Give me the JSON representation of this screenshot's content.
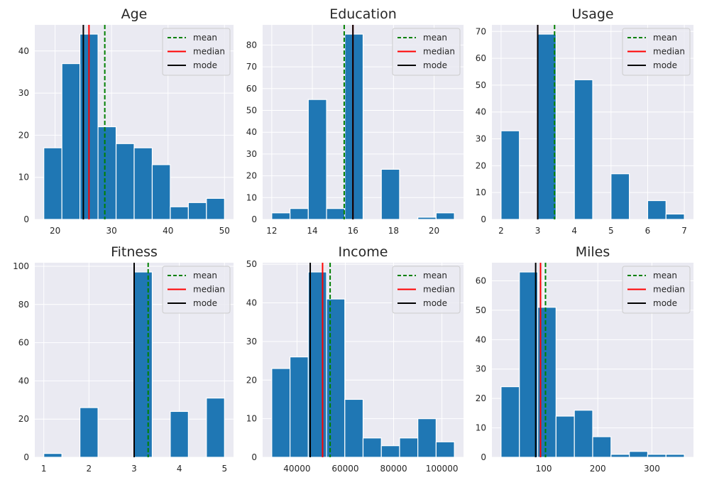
{
  "chart_data": [
    {
      "type": "histogram",
      "title": "Age",
      "bin_edges": [
        18,
        21.2,
        24.4,
        27.6,
        30.8,
        34,
        37.2,
        40.4,
        43.6,
        46.8,
        50
      ],
      "values": [
        17,
        37,
        44,
        22,
        18,
        17,
        13,
        3,
        4,
        5
      ],
      "xlim": [
        16.4,
        51.6
      ],
      "ylim": [
        0,
        46.2
      ],
      "xticks": [
        20,
        30,
        40,
        50
      ],
      "yticks": [
        0,
        10,
        20,
        30,
        40
      ],
      "mean": 28.8,
      "median": 26,
      "mode": 25
    },
    {
      "type": "histogram",
      "title": "Education",
      "bin_edges": [
        12,
        12.9,
        13.8,
        14.7,
        15.6,
        16.5,
        17.4,
        18.3,
        19.2,
        20.1,
        21
      ],
      "values": [
        3,
        5,
        55,
        5,
        85,
        0,
        23,
        0,
        1,
        3
      ],
      "xlim": [
        11.55,
        21.45
      ],
      "ylim": [
        0,
        89.25
      ],
      "xticks": [
        12,
        14,
        16,
        18,
        20
      ],
      "yticks": [
        0,
        10,
        20,
        30,
        40,
        50,
        60,
        70,
        80
      ],
      "mean": 15.57,
      "median": 16,
      "mode": 16
    },
    {
      "type": "histogram",
      "title": "Usage",
      "bin_edges": [
        2,
        2.5,
        3,
        3.5,
        4,
        4.5,
        5,
        5.5,
        6,
        6.5,
        7
      ],
      "values": [
        33,
        0,
        69,
        0,
        52,
        0,
        17,
        0,
        7,
        2
      ],
      "xlim": [
        1.75,
        7.25
      ],
      "ylim": [
        0,
        72.45
      ],
      "xticks": [
        2,
        3,
        4,
        5,
        6,
        7
      ],
      "yticks": [
        0,
        10,
        20,
        30,
        40,
        50,
        60,
        70
      ],
      "mean": 3.46,
      "median": 3,
      "mode": 3
    },
    {
      "type": "histogram",
      "title": "Fitness",
      "bin_edges": [
        1,
        1.4,
        1.8,
        2.2,
        2.6,
        3,
        3.4,
        3.8,
        4.2,
        4.6,
        5
      ],
      "values": [
        2,
        0,
        26,
        0,
        0,
        97,
        0,
        24,
        0,
        31
      ],
      "xlim": [
        0.8,
        5.2
      ],
      "ylim": [
        0,
        101.85
      ],
      "xticks": [
        1,
        2,
        3,
        4,
        5
      ],
      "yticks": [
        0,
        20,
        40,
        60,
        80,
        100
      ],
      "mean": 3.31,
      "median": 3,
      "mode": 3
    },
    {
      "type": "histogram",
      "title": "Income",
      "bin_edges": [
        29562,
        37120,
        44678,
        52236,
        59794,
        67352,
        74910,
        82468,
        90026,
        97584,
        105142
      ],
      "values": [
        23,
        26,
        48,
        41,
        15,
        5,
        3,
        5,
        10,
        4
      ],
      "xlim": [
        25783,
        108921
      ],
      "ylim": [
        0,
        50.4
      ],
      "xticks": [
        40000,
        60000,
        80000,
        100000
      ],
      "yticks": [
        0,
        10,
        20,
        30,
        40,
        50
      ],
      "mean": 53720,
      "median": 50596,
      "mode": 45480
    },
    {
      "type": "histogram",
      "title": "Miles",
      "bin_edges": [
        21,
        54.9,
        88.8,
        122.7,
        156.6,
        190.5,
        224.4,
        258.3,
        292.2,
        326.1,
        360
      ],
      "values": [
        24,
        63,
        51,
        14,
        16,
        7,
        1,
        2,
        1,
        1
      ],
      "xlim": [
        4.05,
        376.95
      ],
      "ylim": [
        0,
        66.15
      ],
      "xticks": [
        100,
        200,
        300
      ],
      "yticks": [
        0,
        10,
        20,
        30,
        40,
        50,
        60
      ],
      "mean": 103.2,
      "median": 94,
      "mode": 85
    }
  ],
  "legend": {
    "items": [
      {
        "label": "mean",
        "color": "#008000",
        "style": "dashed"
      },
      {
        "label": "median",
        "color": "#ff0000",
        "style": "solid"
      },
      {
        "label": "mode",
        "color": "#000000",
        "style": "solid"
      }
    ],
    "placement": "upper right"
  },
  "colors": {
    "bar": "#1f77b4",
    "axes_background": "#eaeaf2",
    "grid": "#ffffff",
    "text": "#262626"
  }
}
